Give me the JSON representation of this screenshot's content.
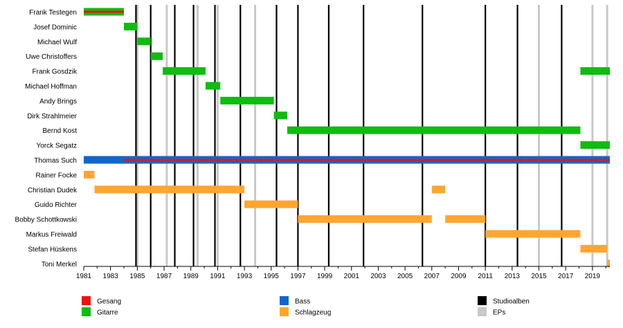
{
  "chart_data": {
    "type": "timeline",
    "x_range": [
      1981,
      2020.3
    ],
    "x_ticks": [
      "1981",
      "1983",
      "1985",
      "1987",
      "1989",
      "1991",
      "1993",
      "1995",
      "1997",
      "1999",
      "2001",
      "2003",
      "2005",
      "2007",
      "2009",
      "2011",
      "2013",
      "2015",
      "2017",
      "2019"
    ],
    "colors": {
      "Gesang": "#ee1111",
      "Gitarre": "#11bb11",
      "Bass": "#1166cc",
      "Schlagzeug": "#ffa630",
      "Studioalben": "#000000",
      "EPs": "#c8c8c8"
    },
    "members": [
      {
        "name": "Frank Testegen",
        "bars": [
          {
            "start": 1981.0,
            "end": 1984.0,
            "role": "Gitarre"
          }
        ],
        "overlay": [
          {
            "start": 1981.0,
            "end": 1984.0,
            "role": "Gesang"
          }
        ]
      },
      {
        "name": "Josef Dominic",
        "bars": [
          {
            "start": 1984.0,
            "end": 1985.0,
            "role": "Gitarre"
          }
        ]
      },
      {
        "name": "Michael Wulf",
        "bars": [
          {
            "start": 1985.0,
            "end": 1986.0,
            "role": "Gitarre"
          }
        ]
      },
      {
        "name": "Uwe Christoffers",
        "bars": [
          {
            "start": 1986.0,
            "end": 1986.9,
            "role": "Gitarre"
          }
        ]
      },
      {
        "name": "Frank Gosdzik",
        "bars": [
          {
            "start": 1986.9,
            "end": 1990.1,
            "role": "Gitarre"
          },
          {
            "start": 2018.1,
            "end": 2020.3,
            "role": "Gitarre"
          }
        ]
      },
      {
        "name": "Michael Hoffman",
        "bars": [
          {
            "start": 1990.1,
            "end": 1991.2,
            "role": "Gitarre"
          }
        ]
      },
      {
        "name": "Andy Brings",
        "bars": [
          {
            "start": 1991.2,
            "end": 1995.2,
            "role": "Gitarre"
          }
        ]
      },
      {
        "name": "Dirk Strahlmeier",
        "bars": [
          {
            "start": 1995.2,
            "end": 1996.2,
            "role": "Gitarre"
          }
        ]
      },
      {
        "name": "Bernd Kost",
        "bars": [
          {
            "start": 1996.2,
            "end": 2018.1,
            "role": "Gitarre"
          }
        ]
      },
      {
        "name": "Yorck Segatz",
        "bars": [
          {
            "start": 2018.1,
            "end": 2020.3,
            "role": "Gitarre"
          }
        ]
      },
      {
        "name": "Thomas Such",
        "bars": [
          {
            "start": 1981.0,
            "end": 2020.3,
            "role": "Bass"
          }
        ],
        "overlay": [
          {
            "start": 1984.0,
            "end": 2020.3,
            "role": "Gesang"
          }
        ]
      },
      {
        "name": "Rainer Focke",
        "bars": [
          {
            "start": 1981.0,
            "end": 1981.8,
            "role": "Schlagzeug"
          }
        ]
      },
      {
        "name": "Christian Dudek",
        "bars": [
          {
            "start": 1981.8,
            "end": 1993.0,
            "role": "Schlagzeug"
          },
          {
            "start": 2007.0,
            "end": 2008.0,
            "role": "Schlagzeug"
          }
        ]
      },
      {
        "name": "Guido Richter",
        "bars": [
          {
            "start": 1993.0,
            "end": 1997.0,
            "role": "Schlagzeug"
          }
        ]
      },
      {
        "name": "Bobby Schottkowski",
        "bars": [
          {
            "start": 1997.0,
            "end": 2007.0,
            "role": "Schlagzeug"
          },
          {
            "start": 2008.0,
            "end": 2011.0,
            "role": "Schlagzeug"
          }
        ]
      },
      {
        "name": "Markus Freiwald",
        "bars": [
          {
            "start": 2011.0,
            "end": 2018.1,
            "role": "Schlagzeug"
          }
        ]
      },
      {
        "name": "Stefan Hüskens",
        "bars": [
          {
            "start": 2018.1,
            "end": 2020.1,
            "role": "Schlagzeug"
          }
        ]
      },
      {
        "name": "Toni Merkel",
        "bars": [
          {
            "start": 2020.1,
            "end": 2020.3,
            "role": "Schlagzeug"
          }
        ]
      }
    ],
    "studioalben": [
      1984.9,
      1986.0,
      1987.8,
      1989.2,
      1990.8,
      1992.7,
      1995.4,
      1997.0,
      1999.3,
      2001.9,
      2006.3,
      2011.0,
      2013.4,
      2016.7
    ],
    "eps": [
      1985.0,
      1987.2,
      1989.5,
      1991.0,
      1993.8,
      2015.0,
      2019.0,
      2020.1
    ],
    "legend": [
      {
        "label": "Gesang",
        "role": "Gesang"
      },
      {
        "label": "Gitarre",
        "role": "Gitarre"
      },
      {
        "label": "Bass",
        "role": "Bass"
      },
      {
        "label": "Schlagzeug",
        "role": "Schlagzeug"
      },
      {
        "label": "Studioalben",
        "role": "Studioalben"
      },
      {
        "label": "EPs",
        "role": "EPs"
      }
    ]
  }
}
